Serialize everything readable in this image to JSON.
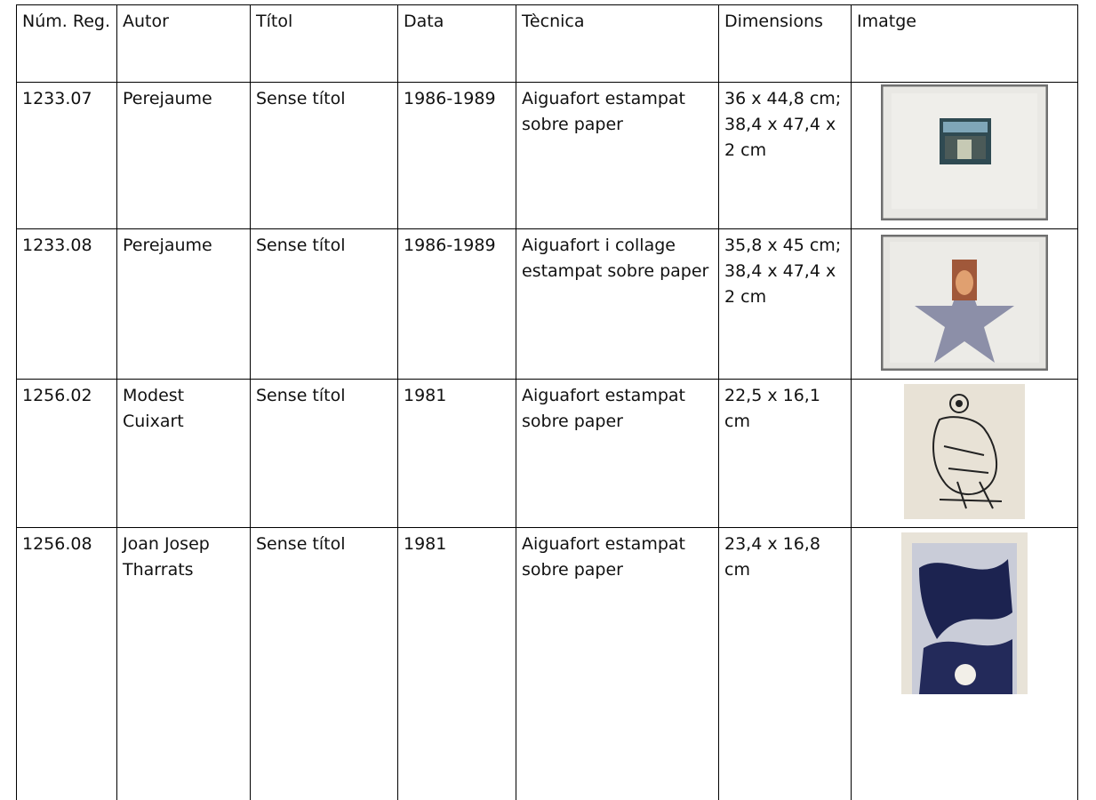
{
  "table": {
    "header": [
      "Núm. Reg.",
      "Autor",
      "Títol",
      "Data",
      "Tècnica",
      "Dimensions",
      "Imatge"
    ],
    "rows": [
      [
        "1233.07",
        "Perejaume",
        "Sense títol",
        "1986-1989",
        "Aiguafort estampat sobre paper",
        "36 x 44,8 cm; 38,4 x 47,4 x 2 cm"
      ],
      [
        "1233.08",
        "Perejaume",
        "Sense títol",
        "1986-1989",
        "Aiguafort i collage estampat sobre paper",
        "35,8 x 45 cm; 38,4 x 47,4 x 2 cm"
      ],
      [
        "1256.02",
        "Modest Cuixart",
        "Sense títol",
        "1981",
        "Aiguafort estampat sobre paper",
        "22,5 x 16,1 cm"
      ],
      [
        "1256.08",
        "Joan Josep Tharrats",
        "Sense títol",
        "1981",
        "Aiguafort estampat sobre paper",
        "23,4 x 16,8 cm"
      ]
    ]
  }
}
